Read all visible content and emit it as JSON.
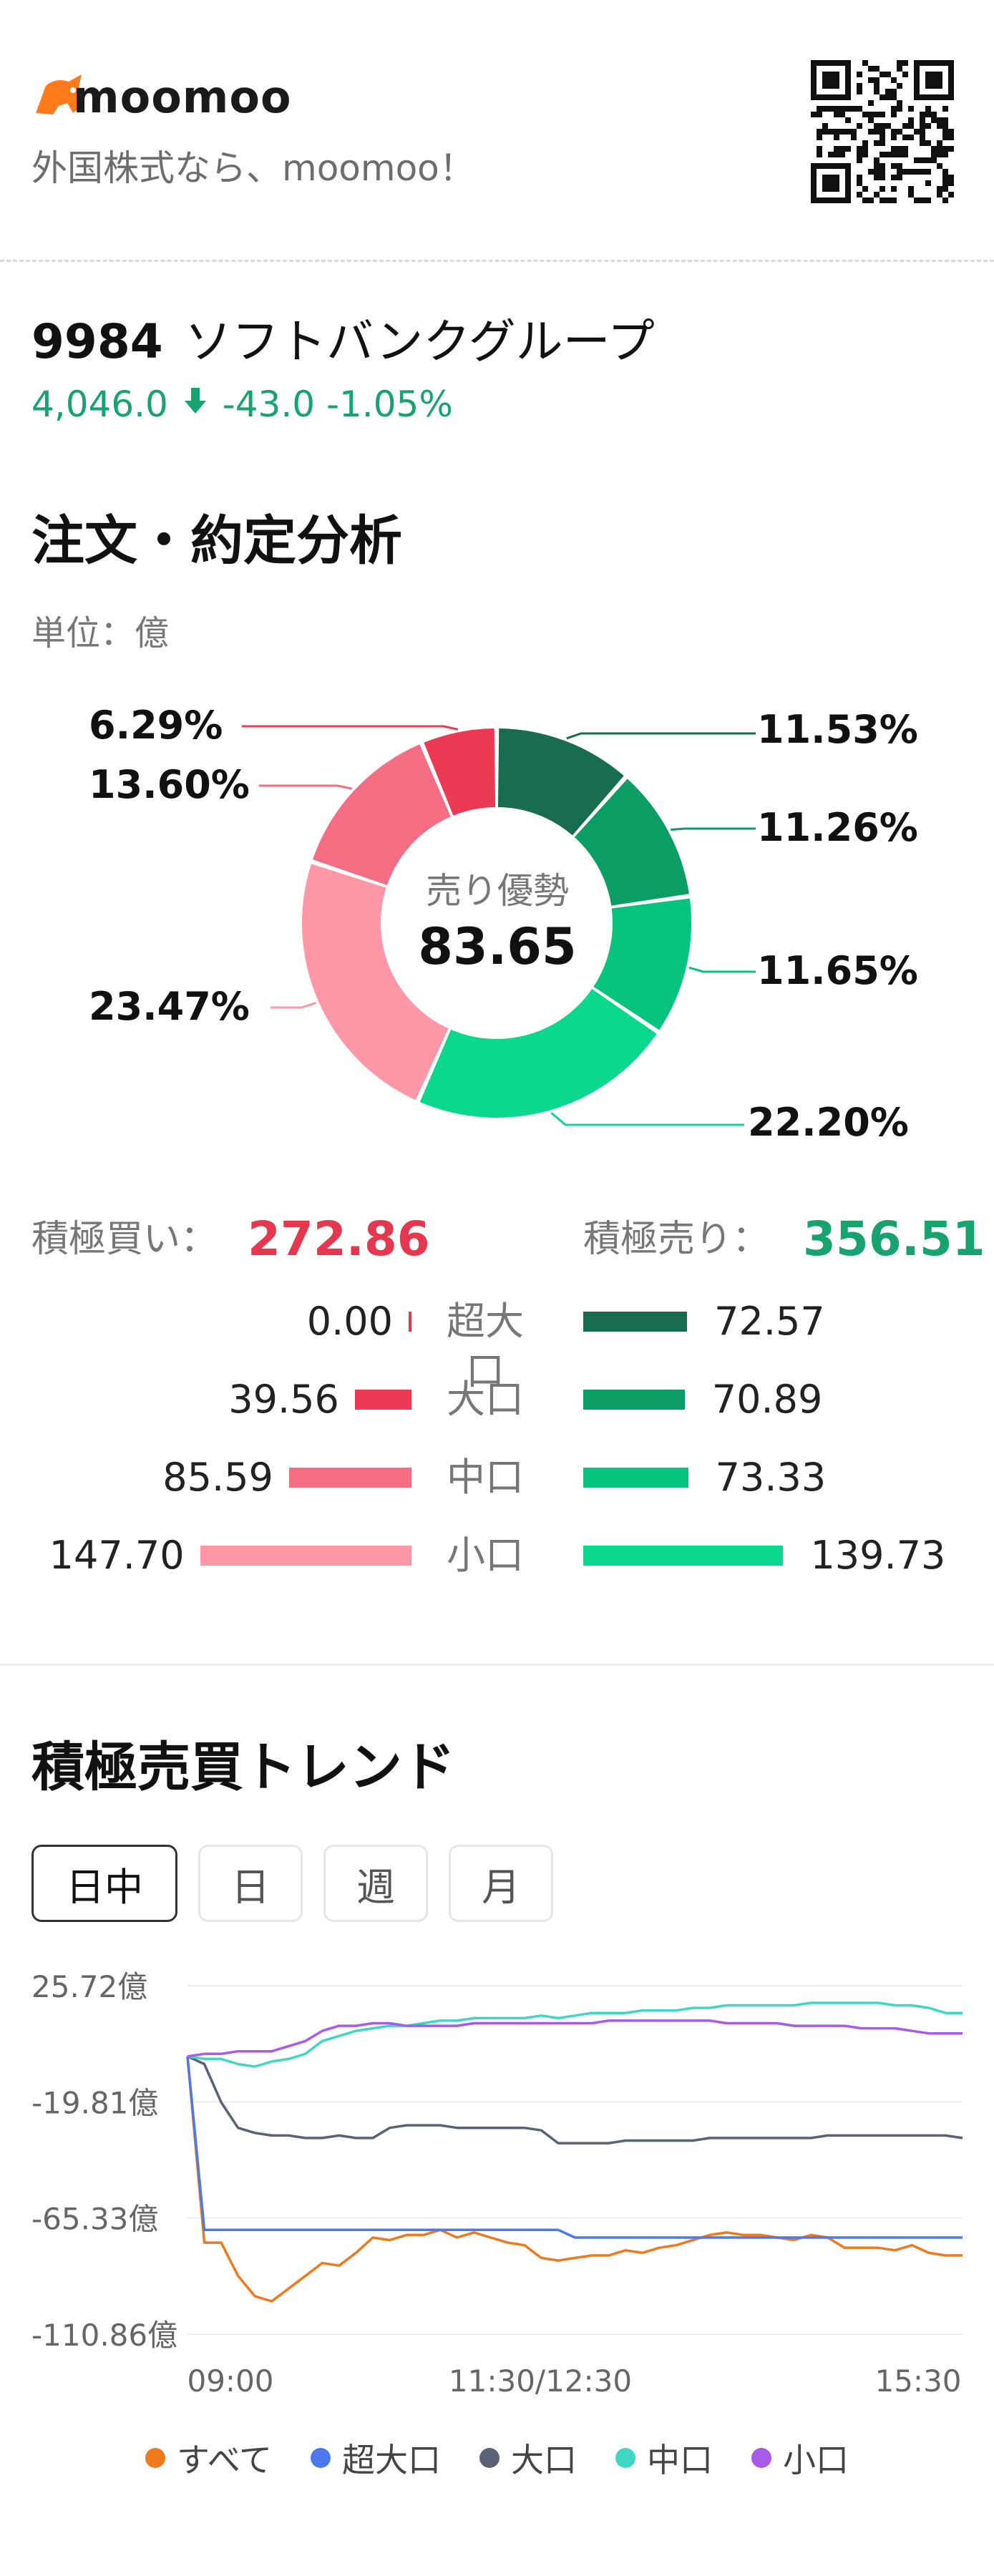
{
  "header": {
    "brand": "moomoo",
    "tagline": "外国株式なら、moomoo！",
    "logo_icon": "moomoo-bull-icon",
    "qr_icon": "qr-code-icon"
  },
  "stock": {
    "code": "9984",
    "name": "ソフトバンクグループ",
    "price": "4,046.0",
    "change": "-43.0",
    "change_pct": "-1.05%",
    "direction_icon": "arrow-down-icon",
    "color": "#17a36f"
  },
  "analysis": {
    "title": "注文・約定分析",
    "unit": "単位：億",
    "center_label": "売り優勢",
    "center_value": "83.65",
    "segments": [
      {
        "label": "11.53%",
        "value": 11.53,
        "color": "#186c4f"
      },
      {
        "label": "11.26%",
        "value": 11.26,
        "color": "#0a9e64"
      },
      {
        "label": "11.65%",
        "value": 11.65,
        "color": "#06c47e"
      },
      {
        "label": "22.20%",
        "value": 22.2,
        "color": "#0ad88e"
      },
      {
        "label": "23.47%",
        "value": 23.47,
        "color": "#fe98a6"
      },
      {
        "label": "13.60%",
        "value": 13.6,
        "color": "#f56d82"
      },
      {
        "label": "6.29%",
        "value": 6.29,
        "color": "#ec3a55"
      }
    ],
    "buy_label": "積極買い：",
    "buy_value": "272.86",
    "sell_label": "積極売り：",
    "sell_value": "356.51",
    "rows": [
      {
        "label": "超大口",
        "buy": "0.00",
        "buy_num": 0.0,
        "sell": "72.57",
        "sell_num": 72.57,
        "buy_color": "#e5384f",
        "sell_color": "#186c4f"
      },
      {
        "label": "大口",
        "buy": "39.56",
        "buy_num": 39.56,
        "sell": "70.89",
        "sell_num": 70.89,
        "buy_color": "#ec3a55",
        "sell_color": "#0a9e64"
      },
      {
        "label": "中口",
        "buy": "85.59",
        "buy_num": 85.59,
        "sell": "73.33",
        "sell_num": 73.33,
        "buy_color": "#f56d82",
        "sell_color": "#06c47e"
      },
      {
        "label": "小口",
        "buy": "147.70",
        "buy_num": 147.7,
        "sell": "139.73",
        "sell_num": 139.73,
        "buy_color": "#fe98a6",
        "sell_color": "#0ad88e"
      }
    ]
  },
  "trend": {
    "title": "積極売買トレンド",
    "tabs": [
      {
        "label": "日中",
        "active": true
      },
      {
        "label": "日",
        "active": false
      },
      {
        "label": "週",
        "active": false
      },
      {
        "label": "月",
        "active": false
      }
    ]
  },
  "chart_data": {
    "type": "line",
    "y_ticks": [
      "25.72億",
      "-19.81億",
      "-65.33億",
      "-110.86億"
    ],
    "ylim": [
      -110.86,
      25.72
    ],
    "x_ticks": [
      "09:00",
      "11:30/12:30",
      "15:30"
    ],
    "grid": true,
    "legend_position": "bottom",
    "series": [
      {
        "name": "すべて",
        "color": "#ef7a1e",
        "values": [
          -2,
          -75,
          -75,
          -88,
          -96,
          -98,
          -93,
          -88,
          -83,
          -84,
          -79,
          -73,
          -74,
          -72,
          -72,
          -70,
          -73,
          -71,
          -73,
          -75,
          -76,
          -81,
          -82,
          -81,
          -80,
          -80,
          -78,
          -79,
          -77,
          -76,
          -74,
          -72,
          -71,
          -72,
          -72,
          -73,
          -74,
          -72,
          -73,
          -77,
          -77,
          -77,
          -78,
          -76,
          -79,
          -80,
          -80
        ]
      },
      {
        "name": "超大口",
        "color": "#4b78ea",
        "values": [
          -2,
          -70,
          -70,
          -70,
          -70,
          -70,
          -70,
          -70,
          -70,
          -70,
          -70,
          -70,
          -70,
          -70,
          -70,
          -70,
          -70,
          -70,
          -70,
          -70,
          -70,
          -70,
          -70,
          -73,
          -73,
          -73,
          -73,
          -73,
          -73,
          -73,
          -73,
          -73,
          -73,
          -73,
          -73,
          -73,
          -73,
          -73,
          -73,
          -73,
          -73,
          -73,
          -73,
          -73,
          -73,
          -73,
          -73
        ]
      },
      {
        "name": "大口",
        "color": "#5a6276",
        "values": [
          -2,
          -5,
          -20,
          -30,
          -32,
          -33,
          -33,
          -34,
          -34,
          -33,
          -34,
          -34,
          -30,
          -29,
          -29,
          -29,
          -30,
          -30,
          -30,
          -30,
          -30,
          -31,
          -36,
          -36,
          -36,
          -36,
          -35,
          -35,
          -35,
          -35,
          -35,
          -34,
          -34,
          -34,
          -34,
          -34,
          -34,
          -34,
          -33,
          -33,
          -33,
          -33,
          -33,
          -33,
          -33,
          -33,
          -34
        ]
      },
      {
        "name": "中口",
        "color": "#3fd7c4",
        "values": [
          -2,
          -3,
          -3,
          -5,
          -6,
          -4,
          -3,
          -1,
          4,
          6,
          8,
          9,
          10,
          10,
          11,
          12,
          12,
          13,
          13,
          13,
          13,
          14,
          13,
          14,
          15,
          15,
          15,
          16,
          16,
          16,
          17,
          17,
          18,
          18,
          18,
          18,
          18,
          19,
          19,
          19,
          19,
          19,
          18,
          18,
          17,
          15,
          15
        ]
      },
      {
        "name": "小口",
        "color": "#a85ae8",
        "values": [
          -2,
          -1,
          -1,
          0,
          0,
          0,
          2,
          4,
          8,
          10,
          10,
          11,
          11,
          10,
          10,
          10,
          10,
          11,
          11,
          11,
          11,
          11,
          11,
          11,
          11,
          12,
          12,
          12,
          12,
          12,
          12,
          12,
          11,
          11,
          11,
          11,
          10,
          10,
          10,
          10,
          9,
          9,
          9,
          8,
          7,
          7,
          7
        ]
      }
    ]
  }
}
